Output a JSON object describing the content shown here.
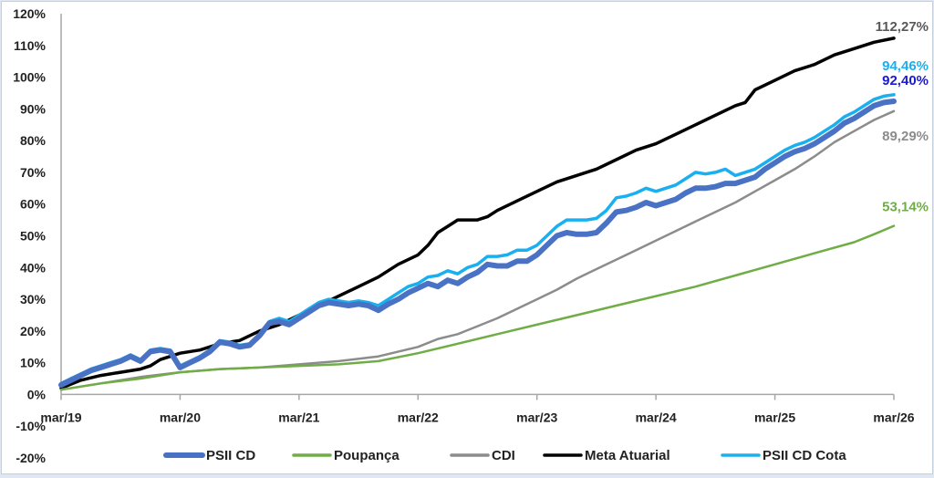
{
  "chart_data": {
    "type": "line",
    "x_ticks": [
      "mar/19",
      "mar/20",
      "mar/21",
      "mar/22",
      "mar/23",
      "mar/24",
      "mar/25",
      "mar/26"
    ],
    "x_range": [
      0,
      84
    ],
    "y_ticks": [
      "-20%",
      "-10%",
      "0%",
      "10%",
      "20%",
      "30%",
      "40%",
      "50%",
      "60%",
      "70%",
      "80%",
      "90%",
      "100%",
      "110%",
      "120%"
    ],
    "ylim": [
      -20,
      120
    ],
    "colors": {
      "psii_cd": "#4a72c4",
      "poupanca": "#70ad47",
      "cdi": "#8c8c8c",
      "meta_atuarial": "#000000",
      "psii_cd_cota": "#1ab0f0",
      "axis": "#a6a6a6"
    },
    "series": [
      {
        "key": "meta_atuarial",
        "name": "Meta Atuarial",
        "end_label": "112,27%",
        "points": [
          [
            0,
            2
          ],
          [
            2,
            4.5
          ],
          [
            4,
            6
          ],
          [
            6,
            7
          ],
          [
            8,
            8
          ],
          [
            9,
            9
          ],
          [
            10,
            11
          ],
          [
            11,
            12
          ],
          [
            12,
            13
          ],
          [
            14,
            14
          ],
          [
            16,
            16
          ],
          [
            18,
            17
          ],
          [
            20,
            20
          ],
          [
            22,
            22
          ],
          [
            24,
            25
          ],
          [
            26,
            28
          ],
          [
            28,
            31
          ],
          [
            30,
            34
          ],
          [
            32,
            37
          ],
          [
            34,
            41
          ],
          [
            36,
            44
          ],
          [
            37,
            47
          ],
          [
            38,
            51
          ],
          [
            39,
            53
          ],
          [
            40,
            55
          ],
          [
            41,
            55
          ],
          [
            42,
            55
          ],
          [
            43,
            56
          ],
          [
            44,
            58
          ],
          [
            46,
            61
          ],
          [
            48,
            64
          ],
          [
            50,
            67
          ],
          [
            52,
            69
          ],
          [
            54,
            71
          ],
          [
            56,
            74
          ],
          [
            58,
            77
          ],
          [
            60,
            79
          ],
          [
            62,
            82
          ],
          [
            64,
            85
          ],
          [
            66,
            88
          ],
          [
            68,
            91
          ],
          [
            69,
            92
          ],
          [
            70,
            96
          ],
          [
            72,
            99
          ],
          [
            74,
            102
          ],
          [
            76,
            104
          ],
          [
            78,
            107
          ],
          [
            80,
            109
          ],
          [
            82,
            111
          ],
          [
            84,
            112.27
          ]
        ]
      },
      {
        "key": "psii_cd_cota",
        "name": "PSII CD Cota",
        "end_label": "94,46%",
        "points": [
          [
            0,
            3.5
          ],
          [
            1,
            5
          ],
          [
            2,
            6.5
          ],
          [
            3,
            8
          ],
          [
            4,
            9
          ],
          [
            5,
            10
          ],
          [
            6,
            11
          ],
          [
            7,
            12.5
          ],
          [
            8,
            11
          ],
          [
            9,
            14
          ],
          [
            10,
            14.5
          ],
          [
            11,
            14
          ],
          [
            12,
            9
          ],
          [
            13,
            10.5
          ],
          [
            14,
            12
          ],
          [
            15,
            14
          ],
          [
            16,
            17
          ],
          [
            17,
            16.5
          ],
          [
            18,
            15.5
          ],
          [
            19,
            16
          ],
          [
            20,
            19
          ],
          [
            21,
            23
          ],
          [
            22,
            24
          ],
          [
            23,
            23
          ],
          [
            24,
            25
          ],
          [
            25,
            27
          ],
          [
            26,
            29
          ],
          [
            27,
            30
          ],
          [
            28,
            29.5
          ],
          [
            29,
            29
          ],
          [
            30,
            29.5
          ],
          [
            31,
            29
          ],
          [
            32,
            28
          ],
          [
            33,
            30
          ],
          [
            34,
            32
          ],
          [
            35,
            34
          ],
          [
            36,
            35
          ],
          [
            37,
            37
          ],
          [
            38,
            37.5
          ],
          [
            39,
            39
          ],
          [
            40,
            38
          ],
          [
            41,
            40
          ],
          [
            42,
            41
          ],
          [
            43,
            43.5
          ],
          [
            44,
            43.5
          ],
          [
            45,
            44
          ],
          [
            46,
            45.5
          ],
          [
            47,
            45.5
          ],
          [
            48,
            47
          ],
          [
            49,
            50
          ],
          [
            50,
            53
          ],
          [
            51,
            55
          ],
          [
            52,
            55
          ],
          [
            53,
            55
          ],
          [
            54,
            55.5
          ],
          [
            55,
            58
          ],
          [
            56,
            62
          ],
          [
            57,
            62.5
          ],
          [
            58,
            63.5
          ],
          [
            59,
            65
          ],
          [
            60,
            64
          ],
          [
            61,
            65
          ],
          [
            62,
            66
          ],
          [
            63,
            68
          ],
          [
            64,
            70
          ],
          [
            65,
            69.5
          ],
          [
            66,
            70
          ],
          [
            67,
            71
          ],
          [
            68,
            69
          ],
          [
            69,
            70
          ],
          [
            70,
            71
          ],
          [
            71,
            73
          ],
          [
            72,
            75
          ],
          [
            73,
            77
          ],
          [
            74,
            78.5
          ],
          [
            75,
            79.5
          ],
          [
            76,
            81
          ],
          [
            77,
            83
          ],
          [
            78,
            85
          ],
          [
            79,
            87.5
          ],
          [
            80,
            89
          ],
          [
            81,
            91
          ],
          [
            82,
            93
          ],
          [
            83,
            94
          ],
          [
            84,
            94.46
          ]
        ]
      },
      {
        "key": "psii_cd",
        "name": "PSII CD",
        "end_label": "92,40%",
        "points": [
          [
            0,
            3
          ],
          [
            1,
            4.5
          ],
          [
            2,
            6
          ],
          [
            3,
            7.5
          ],
          [
            4,
            8.5
          ],
          [
            5,
            9.5
          ],
          [
            6,
            10.5
          ],
          [
            7,
            12
          ],
          [
            8,
            10.5
          ],
          [
            9,
            13.5
          ],
          [
            10,
            14
          ],
          [
            11,
            13.5
          ],
          [
            12,
            8.5
          ],
          [
            13,
            10
          ],
          [
            14,
            11.5
          ],
          [
            15,
            13.5
          ],
          [
            16,
            16.5
          ],
          [
            17,
            16
          ],
          [
            18,
            15
          ],
          [
            19,
            15.5
          ],
          [
            20,
            18.5
          ],
          [
            21,
            22.5
          ],
          [
            22,
            23
          ],
          [
            23,
            22
          ],
          [
            24,
            24
          ],
          [
            25,
            26
          ],
          [
            26,
            28
          ],
          [
            27,
            29
          ],
          [
            28,
            28.5
          ],
          [
            29,
            28
          ],
          [
            30,
            28.5
          ],
          [
            31,
            28
          ],
          [
            32,
            26.5
          ],
          [
            33,
            28.5
          ],
          [
            34,
            30
          ],
          [
            35,
            32
          ],
          [
            36,
            33.5
          ],
          [
            37,
            35
          ],
          [
            38,
            34
          ],
          [
            39,
            36
          ],
          [
            40,
            35
          ],
          [
            41,
            37
          ],
          [
            42,
            38.5
          ],
          [
            43,
            41
          ],
          [
            44,
            40.5
          ],
          [
            45,
            40.5
          ],
          [
            46,
            42
          ],
          [
            47,
            42
          ],
          [
            48,
            44
          ],
          [
            49,
            47
          ],
          [
            50,
            50
          ],
          [
            51,
            51
          ],
          [
            52,
            50.5
          ],
          [
            53,
            50.5
          ],
          [
            54,
            51
          ],
          [
            55,
            54
          ],
          [
            56,
            57.5
          ],
          [
            57,
            58
          ],
          [
            58,
            59
          ],
          [
            59,
            60.5
          ],
          [
            60,
            59.5
          ],
          [
            61,
            60.5
          ],
          [
            62,
            61.5
          ],
          [
            63,
            63.5
          ],
          [
            64,
            65
          ],
          [
            65,
            65
          ],
          [
            66,
            65.5
          ],
          [
            67,
            66.5
          ],
          [
            68,
            66.5
          ],
          [
            69,
            67.5
          ],
          [
            70,
            68.5
          ],
          [
            71,
            71
          ],
          [
            72,
            73
          ],
          [
            73,
            75
          ],
          [
            74,
            76.5
          ],
          [
            75,
            77.5
          ],
          [
            76,
            79
          ],
          [
            77,
            81
          ],
          [
            78,
            83
          ],
          [
            79,
            85.5
          ],
          [
            80,
            87
          ],
          [
            81,
            89
          ],
          [
            82,
            91
          ],
          [
            83,
            92
          ],
          [
            84,
            92.4
          ]
        ]
      },
      {
        "key": "cdi",
        "name": "CDI",
        "end_label": "89,29%",
        "points": [
          [
            0,
            1.5
          ],
          [
            4,
            3.5
          ],
          [
            8,
            5.5
          ],
          [
            12,
            7
          ],
          [
            16,
            8
          ],
          [
            20,
            8.5
          ],
          [
            24,
            9.5
          ],
          [
            28,
            10.5
          ],
          [
            32,
            12
          ],
          [
            36,
            15
          ],
          [
            38,
            17.5
          ],
          [
            40,
            19
          ],
          [
            42,
            21.5
          ],
          [
            44,
            24
          ],
          [
            46,
            27
          ],
          [
            48,
            30
          ],
          [
            50,
            33
          ],
          [
            52,
            36.5
          ],
          [
            54,
            39.5
          ],
          [
            56,
            42.5
          ],
          [
            58,
            45.5
          ],
          [
            60,
            48.5
          ],
          [
            62,
            51.5
          ],
          [
            64,
            54.5
          ],
          [
            66,
            57.5
          ],
          [
            68,
            60.5
          ],
          [
            70,
            64
          ],
          [
            72,
            67.5
          ],
          [
            74,
            71
          ],
          [
            76,
            75
          ],
          [
            78,
            79.5
          ],
          [
            80,
            83
          ],
          [
            82,
            86.5
          ],
          [
            84,
            89.29
          ]
        ]
      },
      {
        "key": "poupanca",
        "name": "Poupança",
        "end_label": "53,14%",
        "points": [
          [
            0,
            1.5
          ],
          [
            4,
            3.5
          ],
          [
            8,
            5
          ],
          [
            12,
            7
          ],
          [
            16,
            8
          ],
          [
            20,
            8.5
          ],
          [
            24,
            9
          ],
          [
            28,
            9.5
          ],
          [
            32,
            10.5
          ],
          [
            36,
            13
          ],
          [
            40,
            16
          ],
          [
            44,
            19
          ],
          [
            48,
            22
          ],
          [
            52,
            25
          ],
          [
            56,
            28
          ],
          [
            60,
            31
          ],
          [
            64,
            34
          ],
          [
            68,
            37.5
          ],
          [
            72,
            41
          ],
          [
            76,
            44.5
          ],
          [
            80,
            48
          ],
          [
            82,
            50.5
          ],
          [
            84,
            53.14
          ]
        ]
      }
    ],
    "legend": {
      "placement": "bottom",
      "order": [
        "psii_cd",
        "poupanca",
        "cdi",
        "meta_atuarial",
        "psii_cd_cota"
      ]
    },
    "grid": false
  }
}
